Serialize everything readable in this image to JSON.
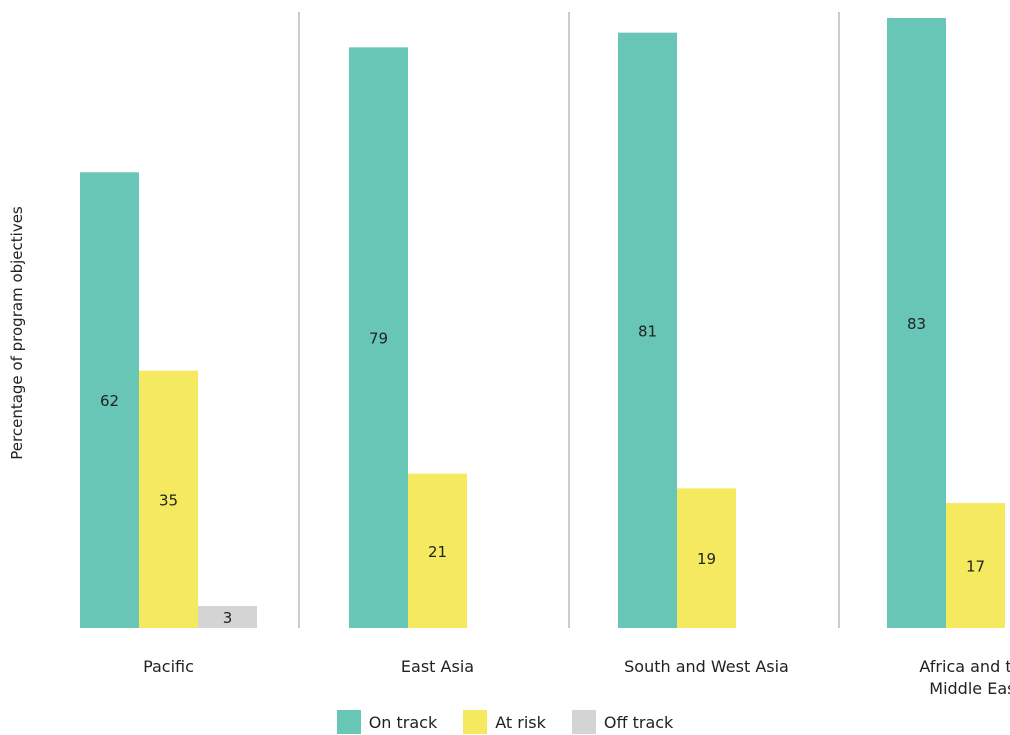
{
  "chart_data": {
    "type": "bar",
    "title": "",
    "ylabel": "Percentage of program objectives",
    "xlabel": "",
    "ylim": [
      0,
      100
    ],
    "grid": false,
    "legend_position": "bottom",
    "categories": [
      [
        "Pacific"
      ],
      [
        "East Asia"
      ],
      [
        "South and West Asia"
      ],
      [
        "Africa and the",
        "Middle East"
      ]
    ],
    "series": [
      {
        "name": "On track",
        "color": "#67c6b5",
        "values": [
          62,
          79,
          81,
          83
        ]
      },
      {
        "name": "At risk",
        "color": "#f5ea5f",
        "values": [
          35,
          21,
          19,
          17
        ]
      },
      {
        "name": "Off track",
        "color": "#d4d4d4",
        "values": [
          3,
          0,
          0,
          0
        ]
      }
    ]
  }
}
